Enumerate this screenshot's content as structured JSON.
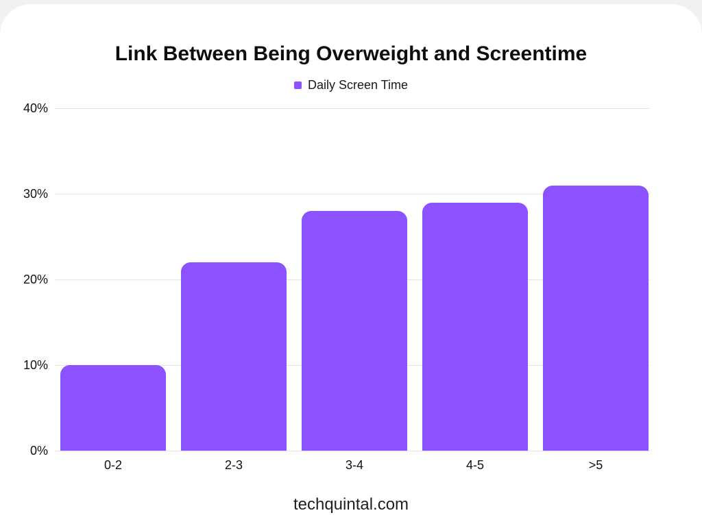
{
  "page": {
    "background": "#f2f1f1",
    "card_background": "#ffffff"
  },
  "chart_data": {
    "type": "bar",
    "title": "Link Between Being Overweight and Screentime",
    "legend": [
      {
        "label": "Daily Screen Time",
        "color": "#8c52ff"
      }
    ],
    "legend_position": "top-center",
    "categories": [
      "0-2",
      "2-3",
      "3-4",
      "4-5",
      ">5"
    ],
    "series": [
      {
        "name": "Daily Screen Time",
        "values": [
          10,
          22,
          28,
          29,
          31
        ]
      }
    ],
    "values": [
      10,
      22,
      28,
      29,
      31
    ],
    "xlabel": "",
    "ylabel": "",
    "ylim": [
      0,
      40
    ],
    "yticks": [
      {
        "label": "0%",
        "value": 0
      },
      {
        "label": "10%",
        "value": 10
      },
      {
        "label": "20%",
        "value": 20
      },
      {
        "label": "30%",
        "value": 30
      },
      {
        "label": "40%",
        "value": 40
      }
    ],
    "grid": true,
    "gridline_color": "#e4e4e4",
    "bar_color": "#8c52ff"
  },
  "footer": {
    "text": "techquintal.com"
  }
}
